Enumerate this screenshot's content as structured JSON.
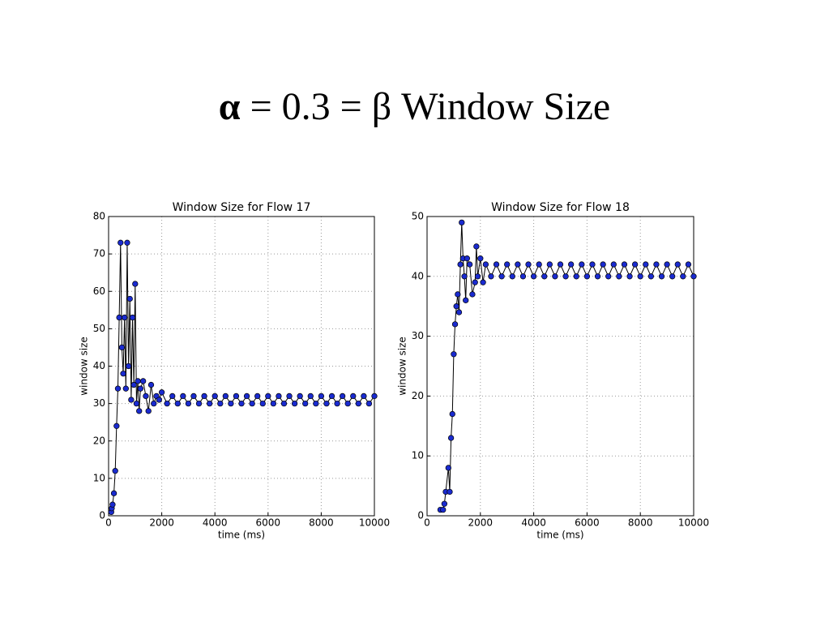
{
  "title_symbol": "α",
  "title": "= 0.3 = β Window Size",
  "chart_data": [
    {
      "type": "line",
      "title": "Window Size for Flow 17",
      "xlabel": "time (ms)",
      "ylabel": "window size",
      "x": [
        100,
        120,
        150,
        200,
        250,
        300,
        350,
        400,
        450,
        500,
        550,
        600,
        650,
        700,
        750,
        800,
        850,
        900,
        950,
        1000,
        1050,
        1100,
        1150,
        1200,
        1300,
        1400,
        1500,
        1600,
        1700,
        1800,
        1900,
        2000,
        2200,
        2400,
        2600,
        2800,
        3000,
        3200,
        3400,
        3600,
        3800,
        4000,
        4200,
        4400,
        4600,
        4800,
        5000,
        5200,
        5400,
        5600,
        5800,
        6000,
        6200,
        6400,
        6600,
        6800,
        7000,
        7200,
        7400,
        7600,
        7800,
        8000,
        8200,
        8400,
        8600,
        8800,
        9000,
        9200,
        9400,
        9600,
        9800,
        10000
      ],
      "values": [
        1,
        2,
        3,
        6,
        12,
        24,
        34,
        53,
        73,
        45,
        38,
        53,
        34,
        73,
        40,
        58,
        31,
        53,
        35,
        62,
        30,
        36,
        28,
        34,
        36,
        32,
        28,
        35,
        30,
        32,
        31,
        33,
        30,
        32,
        30,
        32,
        30,
        32,
        30,
        32,
        30,
        32,
        30,
        32,
        30,
        32,
        30,
        32,
        30,
        32,
        30,
        32,
        30,
        32,
        30,
        32,
        30,
        32,
        30,
        32,
        30,
        32,
        30,
        32,
        30,
        32,
        30,
        32,
        30,
        32,
        30,
        32
      ],
      "color": "#1a2bd0",
      "line_color": "#000000",
      "xlim": [
        0,
        10000
      ],
      "xticks": [
        0,
        2000,
        4000,
        6000,
        8000,
        10000
      ],
      "ylim": [
        0,
        80
      ],
      "yticks": [
        0,
        10,
        20,
        30,
        40,
        50,
        60,
        70,
        80
      ],
      "grid": true
    },
    {
      "type": "line",
      "title": "Window Size for Flow 18",
      "xlabel": "time (ms)",
      "ylabel": "window size",
      "x": [
        500,
        600,
        650,
        700,
        800,
        850,
        900,
        950,
        1000,
        1050,
        1100,
        1150,
        1200,
        1250,
        1300,
        1350,
        1400,
        1450,
        1500,
        1600,
        1700,
        1800,
        1850,
        1900,
        2000,
        2100,
        2200,
        2400,
        2600,
        2800,
        3000,
        3200,
        3400,
        3600,
        3800,
        4000,
        4200,
        4400,
        4600,
        4800,
        5000,
        5200,
        5400,
        5600,
        5800,
        6000,
        6200,
        6400,
        6600,
        6800,
        7000,
        7200,
        7400,
        7600,
        7800,
        8000,
        8200,
        8400,
        8600,
        8800,
        9000,
        9200,
        9400,
        9600,
        9800,
        10000
      ],
      "values": [
        1,
        1,
        2,
        4,
        8,
        4,
        13,
        17,
        27,
        32,
        35,
        37,
        34,
        42,
        49,
        43,
        40,
        36,
        43,
        42,
        37,
        39,
        45,
        40,
        43,
        39,
        42,
        40,
        42,
        40,
        42,
        40,
        42,
        40,
        42,
        40,
        42,
        40,
        42,
        40,
        42,
        40,
        42,
        40,
        42,
        40,
        42,
        40,
        42,
        40,
        42,
        40,
        42,
        40,
        42,
        40,
        42,
        40,
        42,
        40,
        42,
        40,
        42,
        40,
        42,
        40
      ],
      "color": "#1a2bd0",
      "line_color": "#000000",
      "xlim": [
        0,
        10000
      ],
      "xticks": [
        0,
        2000,
        4000,
        6000,
        8000,
        10000
      ],
      "ylim": [
        0,
        50
      ],
      "yticks": [
        0,
        10,
        20,
        30,
        40,
        50
      ],
      "grid": true
    }
  ]
}
